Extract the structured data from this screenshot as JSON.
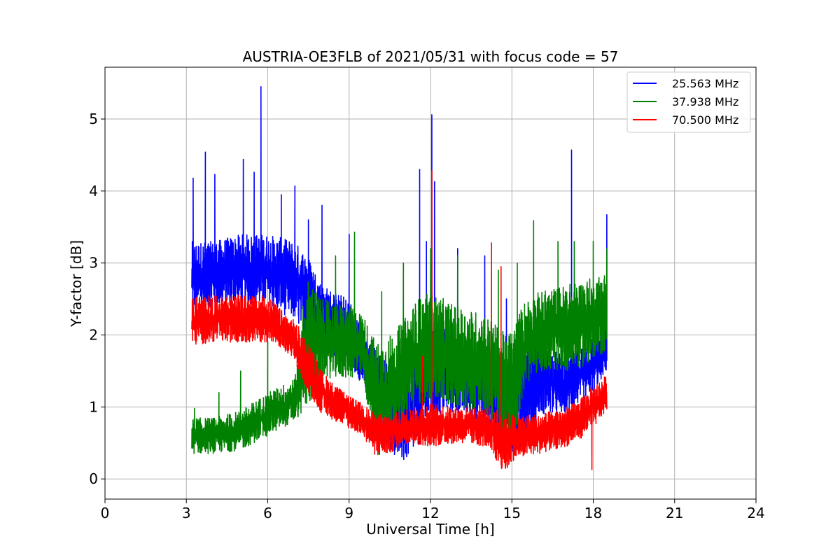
{
  "chart_data": {
    "type": "line",
    "title": "AUSTRIA-OE3FLB of 2021/05/31 with focus code = 57",
    "xlabel": "Universal Time [h]",
    "ylabel": "Y-factor [dB]",
    "xlim": [
      0,
      24
    ],
    "ylim": [
      -0.28,
      5.72
    ],
    "x_ticks": [
      0,
      3,
      6,
      9,
      12,
      15,
      18,
      21,
      24
    ],
    "y_ticks": [
      0,
      1,
      2,
      3,
      4,
      5
    ],
    "grid": true,
    "legend_position": "top-right",
    "series": [
      {
        "name": "25.563 MHz",
        "color": "#0000ff",
        "x_start": 3.2,
        "x_end": 18.5,
        "envelope": {
          "x": [
            3.2,
            4.0,
            5.0,
            6.0,
            7.0,
            7.5,
            8.0,
            9.0,
            9.5,
            10.0,
            10.5,
            11.0,
            11.5,
            12.0,
            12.5,
            13.0,
            14.0,
            15.0,
            15.5,
            16.0,
            17.0,
            18.0,
            18.5
          ],
          "low": [
            2.3,
            2.4,
            2.4,
            2.4,
            2.2,
            1.9,
            1.8,
            1.6,
            1.3,
            0.8,
            0.4,
            0.2,
            0.4,
            0.8,
            0.9,
            0.9,
            0.8,
            0.3,
            0.4,
            0.9,
            0.9,
            1.2,
            1.5
          ],
          "high": [
            3.3,
            3.3,
            3.4,
            3.4,
            3.3,
            3.1,
            2.7,
            2.5,
            2.1,
            1.8,
            1.6,
            1.5,
            1.9,
            2.2,
            2.1,
            1.9,
            1.8,
            1.6,
            1.8,
            1.9,
            1.7,
            2.0,
            2.2
          ]
        },
        "spikes": [
          [
            3.25,
            4.18
          ],
          [
            3.7,
            4.54
          ],
          [
            4.05,
            4.23
          ],
          [
            5.1,
            4.44
          ],
          [
            5.5,
            4.26
          ],
          [
            5.75,
            5.45
          ],
          [
            6.5,
            3.95
          ],
          [
            7.0,
            4.07
          ],
          [
            7.5,
            3.6
          ],
          [
            8.0,
            3.8
          ],
          [
            9.0,
            3.4
          ],
          [
            11.6,
            4.3
          ],
          [
            11.85,
            3.3
          ],
          [
            12.05,
            5.06
          ],
          [
            12.15,
            4.13
          ],
          [
            13.0,
            3.2
          ],
          [
            14.0,
            3.1
          ],
          [
            14.8,
            2.5
          ],
          [
            17.2,
            4.57
          ],
          [
            18.5,
            3.67
          ]
        ]
      },
      {
        "name": "37.938 MHz",
        "color": "#008000",
        "x_start": 3.2,
        "x_end": 18.5,
        "envelope": {
          "x": [
            3.2,
            4.0,
            5.0,
            6.0,
            7.0,
            7.5,
            8.0,
            9.0,
            9.5,
            10.0,
            10.5,
            11.0,
            11.5,
            12.0,
            12.5,
            13.0,
            14.0,
            14.8,
            15.0,
            15.5,
            16.0,
            17.0,
            18.0,
            18.5
          ],
          "low": [
            0.35,
            0.35,
            0.4,
            0.6,
            0.8,
            1.0,
            1.4,
            1.4,
            1.4,
            0.3,
            0.6,
            0.8,
            1.0,
            1.1,
            1.0,
            1.0,
            0.9,
            0.5,
            0.4,
            1.3,
            1.5,
            1.5,
            1.6,
            1.8
          ],
          "high": [
            0.85,
            0.85,
            0.95,
            1.2,
            1.4,
            2.8,
            2.5,
            2.4,
            2.3,
            1.9,
            2.0,
            2.2,
            2.5,
            2.6,
            2.5,
            2.4,
            2.3,
            2.0,
            2.1,
            2.5,
            2.6,
            2.7,
            2.8,
            2.9
          ]
        },
        "spikes": [
          [
            3.3,
            0.98
          ],
          [
            4.2,
            1.2
          ],
          [
            5.0,
            1.5
          ],
          [
            6.0,
            1.9
          ],
          [
            7.3,
            2.4
          ],
          [
            8.5,
            3.1
          ],
          [
            9.2,
            3.43
          ],
          [
            10.2,
            2.6
          ],
          [
            11.0,
            3.0
          ],
          [
            12.0,
            3.2
          ],
          [
            13.0,
            3.1
          ],
          [
            14.5,
            2.9
          ],
          [
            15.2,
            3.0
          ],
          [
            15.8,
            3.59
          ],
          [
            16.7,
            3.3
          ],
          [
            17.3,
            3.3
          ],
          [
            18.0,
            3.3
          ],
          [
            18.5,
            3.2
          ]
        ]
      },
      {
        "name": "70.500 MHz",
        "color": "#ff0000",
        "x_start": 3.2,
        "x_end": 18.5,
        "envelope": {
          "x": [
            3.2,
            4.0,
            5.0,
            6.0,
            6.5,
            7.0,
            7.5,
            8.0,
            8.5,
            9.0,
            9.5,
            10.0,
            10.5,
            11.0,
            12.0,
            13.0,
            14.0,
            14.8,
            15.0,
            16.0,
            17.0,
            17.5,
            18.0,
            18.5
          ],
          "low": [
            1.85,
            1.9,
            1.9,
            1.9,
            1.8,
            1.6,
            1.2,
            0.9,
            0.8,
            0.7,
            0.6,
            0.3,
            0.35,
            0.5,
            0.45,
            0.5,
            0.45,
            0.05,
            0.25,
            0.35,
            0.45,
            0.55,
            0.7,
            0.95
          ],
          "high": [
            2.55,
            2.55,
            2.55,
            2.55,
            2.35,
            2.2,
            1.9,
            1.5,
            1.3,
            1.15,
            1.05,
            0.9,
            0.9,
            0.95,
            1.05,
            1.0,
            1.0,
            0.95,
            0.9,
            0.9,
            1.0,
            1.1,
            1.3,
            1.45
          ]
        },
        "spikes": [
          [
            12.05,
            4.28
          ],
          [
            14.25,
            3.28
          ],
          [
            14.6,
            2.95
          ],
          [
            11.7,
            1.7
          ],
          [
            17.95,
            0.13
          ]
        ]
      }
    ]
  }
}
